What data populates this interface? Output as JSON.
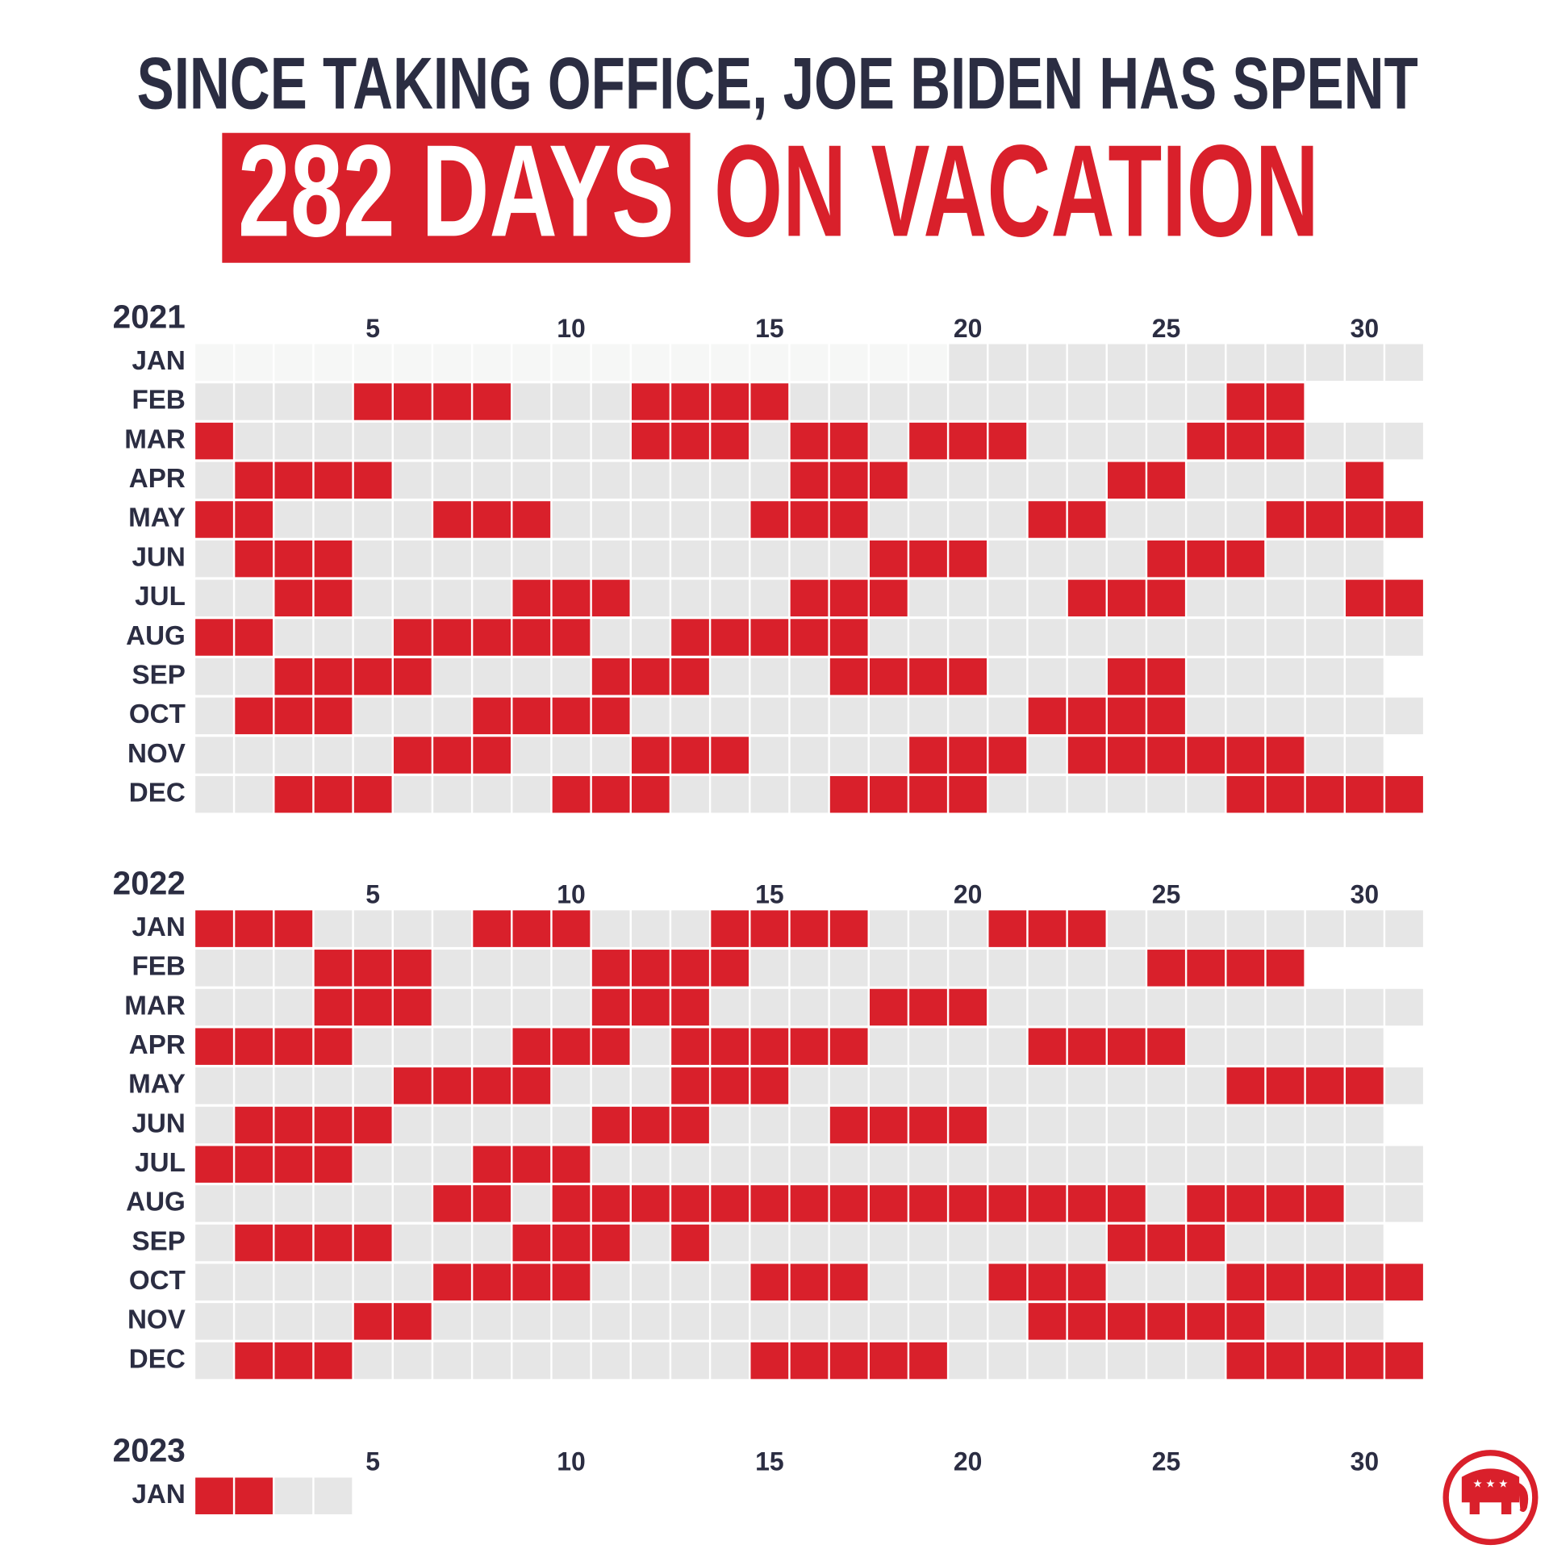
{
  "header": {
    "line1": "SINCE TAKING OFFICE, JOE BIDEN HAS SPENT",
    "highlight": "282 DAYS",
    "line2": "ON VACATION"
  },
  "calendars": [
    {
      "year": "2021",
      "day_ticks": [
        5,
        10,
        15,
        20,
        25,
        30
      ],
      "months": [
        {
          "label": "JAN",
          "days": 31,
          "first_day": 20,
          "vacation": []
        },
        {
          "label": "FEB",
          "days": 28,
          "vacation": [
            5,
            6,
            7,
            8,
            12,
            13,
            14,
            15,
            27,
            28
          ]
        },
        {
          "label": "MAR",
          "days": 31,
          "vacation": [
            1,
            12,
            13,
            14,
            16,
            17,
            19,
            20,
            21,
            26,
            27,
            28
          ]
        },
        {
          "label": "APR",
          "days": 30,
          "vacation": [
            2,
            3,
            4,
            5,
            16,
            17,
            18,
            24,
            25,
            30
          ]
        },
        {
          "label": "MAY",
          "days": 31,
          "vacation": [
            1,
            2,
            7,
            8,
            9,
            15,
            16,
            17,
            22,
            23,
            28,
            29,
            30,
            31
          ]
        },
        {
          "label": "JUN",
          "days": 30,
          "vacation": [
            2,
            3,
            4,
            18,
            19,
            20,
            25,
            26,
            27
          ]
        },
        {
          "label": "JUL",
          "days": 31,
          "vacation": [
            3,
            4,
            9,
            10,
            11,
            16,
            17,
            18,
            23,
            24,
            25,
            30,
            31
          ]
        },
        {
          "label": "AUG",
          "days": 31,
          "vacation": [
            1,
            2,
            6,
            7,
            8,
            9,
            10,
            13,
            14,
            15,
            16,
            17
          ]
        },
        {
          "label": "SEP",
          "days": 30,
          "vacation": [
            3,
            4,
            5,
            6,
            11,
            12,
            13,
            17,
            18,
            19,
            20,
            24,
            25
          ]
        },
        {
          "label": "OCT",
          "days": 31,
          "vacation": [
            2,
            3,
            4,
            8,
            9,
            10,
            11,
            22,
            23,
            24,
            25
          ]
        },
        {
          "label": "NOV",
          "days": 30,
          "vacation": [
            6,
            7,
            8,
            12,
            13,
            14,
            19,
            20,
            21,
            23,
            24,
            25,
            26,
            27,
            28
          ]
        },
        {
          "label": "DEC",
          "days": 31,
          "vacation": [
            3,
            4,
            5,
            10,
            11,
            12,
            17,
            18,
            19,
            20,
            27,
            28,
            29,
            30,
            31
          ]
        }
      ]
    },
    {
      "year": "2022",
      "day_ticks": [
        5,
        10,
        15,
        20,
        25,
        30
      ],
      "months": [
        {
          "label": "JAN",
          "days": 31,
          "vacation": [
            1,
            2,
            3,
            8,
            9,
            10,
            14,
            15,
            16,
            17,
            21,
            22,
            23
          ]
        },
        {
          "label": "FEB",
          "days": 28,
          "vacation": [
            4,
            5,
            6,
            11,
            12,
            13,
            14,
            25,
            26,
            27,
            28
          ]
        },
        {
          "label": "MAR",
          "days": 31,
          "vacation": [
            4,
            5,
            6,
            11,
            12,
            13,
            18,
            19,
            20
          ]
        },
        {
          "label": "APR",
          "days": 30,
          "vacation": [
            1,
            2,
            3,
            4,
            9,
            10,
            11,
            13,
            14,
            15,
            16,
            17,
            22,
            23,
            24,
            25
          ]
        },
        {
          "label": "MAY",
          "days": 31,
          "vacation": [
            6,
            7,
            8,
            9,
            13,
            14,
            15,
            27,
            28,
            29,
            30
          ]
        },
        {
          "label": "JUN",
          "days": 30,
          "vacation": [
            2,
            3,
            4,
            5,
            11,
            12,
            13,
            17,
            18,
            19,
            20
          ]
        },
        {
          "label": "JUL",
          "days": 31,
          "vacation": [
            1,
            2,
            3,
            4,
            8,
            9,
            10
          ]
        },
        {
          "label": "AUG",
          "days": 31,
          "vacation": [
            7,
            8,
            10,
            11,
            12,
            13,
            14,
            15,
            16,
            17,
            18,
            19,
            20,
            21,
            22,
            23,
            24,
            26,
            27,
            28,
            29
          ]
        },
        {
          "label": "SEP",
          "days": 30,
          "vacation": [
            2,
            3,
            4,
            5,
            9,
            10,
            11,
            13,
            24,
            25,
            26
          ]
        },
        {
          "label": "OCT",
          "days": 31,
          "vacation": [
            7,
            8,
            9,
            10,
            15,
            16,
            17,
            21,
            22,
            23,
            27,
            28,
            29,
            30,
            31
          ]
        },
        {
          "label": "NOV",
          "days": 30,
          "vacation": [
            5,
            6,
            22,
            23,
            24,
            25,
            26,
            27
          ]
        },
        {
          "label": "DEC",
          "days": 31,
          "vacation": [
            2,
            3,
            4,
            15,
            16,
            17,
            18,
            19,
            27,
            28,
            29,
            30,
            31
          ]
        }
      ]
    },
    {
      "year": "2023",
      "day_ticks": [
        5,
        10,
        15,
        20,
        25,
        30
      ],
      "months": [
        {
          "label": "JAN",
          "days": 4,
          "vacation": [
            1,
            2
          ]
        }
      ]
    }
  ]
}
